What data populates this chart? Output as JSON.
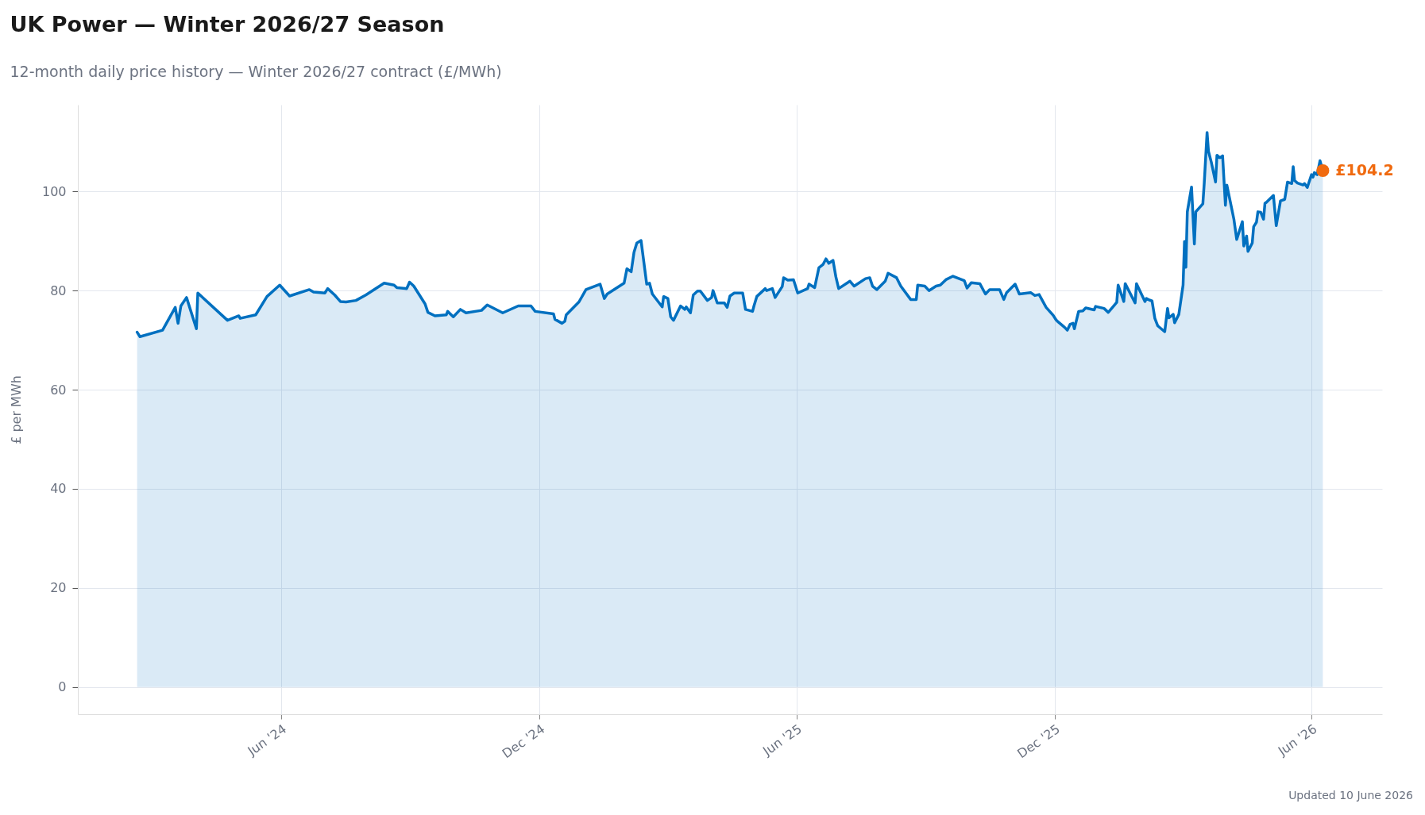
{
  "chart_data": {
    "type": "area",
    "title": "UK Power — Winter 2026/27 Season",
    "subtitle": "12-month daily price history — Winter 2026/27 contract (£/MWh)",
    "ylabel": "£ per MWh",
    "x": [
      "2024-02-20",
      "2024-02-22",
      "2024-03-09",
      "2024-03-18",
      "2024-03-20",
      "2024-03-22",
      "2024-03-26",
      "2024-04-02",
      "2024-04-03",
      "2024-04-24",
      "2024-05-02",
      "2024-05-03",
      "2024-05-14",
      "2024-05-22",
      "2024-05-31",
      "2024-06-07",
      "2024-06-21",
      "2024-06-24",
      "2024-07-02",
      "2024-07-04",
      "2024-07-09",
      "2024-07-13",
      "2024-07-17",
      "2024-07-24",
      "2024-07-31",
      "2024-08-13",
      "2024-08-20",
      "2024-08-22",
      "2024-08-29",
      "2024-08-31",
      "2024-09-03",
      "2024-09-11",
      "2024-09-13",
      "2024-09-18",
      "2024-09-26",
      "2024-09-27",
      "2024-10-01",
      "2024-10-06",
      "2024-10-10",
      "2024-10-21",
      "2024-10-25",
      "2024-11-05",
      "2024-11-16",
      "2024-11-25",
      "2024-11-28",
      "2024-12-11",
      "2024-12-12",
      "2024-12-17",
      "2024-12-19",
      "2024-12-20",
      "2024-12-29",
      "2025-01-03",
      "2025-01-13",
      "2025-01-16",
      "2025-01-18",
      "2025-01-30",
      "2025-02-01",
      "2025-02-04",
      "2025-02-06",
      "2025-02-08",
      "2025-02-11",
      "2025-02-15",
      "2025-02-17",
      "2025-02-19",
      "2025-02-26",
      "2025-02-27",
      "2025-03-02",
      "2025-03-04",
      "2025-03-06",
      "2025-03-11",
      "2025-03-14",
      "2025-03-15",
      "2025-03-18",
      "2025-03-20",
      "2025-03-23",
      "2025-03-25",
      "2025-03-30",
      "2025-04-02",
      "2025-04-03",
      "2025-04-06",
      "2025-04-11",
      "2025-04-13",
      "2025-04-15",
      "2025-04-18",
      "2025-04-24",
      "2025-04-26",
      "2025-05-01",
      "2025-05-02",
      "2025-05-04",
      "2025-05-10",
      "2025-05-11",
      "2025-05-15",
      "2025-05-17",
      "2025-05-22",
      "2025-05-23",
      "2025-05-26",
      "2025-05-30",
      "2025-06-02",
      "2025-06-09",
      "2025-06-10",
      "2025-06-14",
      "2025-06-17",
      "2025-06-20",
      "2025-06-22",
      "2025-06-24",
      "2025-06-27",
      "2025-06-29",
      "2025-07-01",
      "2025-07-09",
      "2025-07-12",
      "2025-07-20",
      "2025-07-23",
      "2025-07-25",
      "2025-07-28",
      "2025-08-03",
      "2025-08-05",
      "2025-08-11",
      "2025-08-14",
      "2025-08-21",
      "2025-08-25",
      "2025-08-26",
      "2025-08-31",
      "2025-09-03",
      "2025-09-08",
      "2025-09-11",
      "2025-09-15",
      "2025-09-20",
      "2025-09-28",
      "2025-09-30",
      "2025-10-03",
      "2025-10-09",
      "2025-10-13",
      "2025-10-16",
      "2025-10-23",
      "2025-10-26",
      "2025-10-28",
      "2025-11-03",
      "2025-11-06",
      "2025-11-14",
      "2025-11-17",
      "2025-11-20",
      "2025-11-25",
      "2025-11-30",
      "2025-12-02",
      "2025-12-03",
      "2025-12-08",
      "2025-12-10",
      "2025-12-12",
      "2025-12-14",
      "2025-12-15",
      "2025-12-18",
      "2025-12-21",
      "2025-12-23",
      "2025-12-29",
      "2025-12-30",
      "2026-01-05",
      "2026-01-08",
      "2026-01-13",
      "2026-01-14",
      "2026-01-15",
      "2026-01-19",
      "2026-01-20",
      "2026-01-27",
      "2026-01-28",
      "2026-02-03",
      "2026-02-04",
      "2026-02-06",
      "2026-02-08",
      "2026-02-10",
      "2026-02-12",
      "2026-02-17",
      "2026-02-19",
      "2026-02-20",
      "2026-02-23",
      "2026-02-24",
      "2026-02-27",
      "2026-03-02",
      "2026-03-03",
      "2026-03-04",
      "2026-03-05",
      "2026-03-08",
      "2026-03-10",
      "2026-03-11",
      "2026-03-16",
      "2026-03-17",
      "2026-03-19",
      "2026-03-20",
      "2026-03-22",
      "2026-03-25",
      "2026-03-26",
      "2026-03-28",
      "2026-03-30",
      "2026-04-01",
      "2026-04-02",
      "2026-04-07",
      "2026-04-09",
      "2026-04-13",
      "2026-04-14",
      "2026-04-16",
      "2026-04-17",
      "2026-04-20",
      "2026-04-21",
      "2026-04-23",
      "2026-04-24",
      "2026-04-26",
      "2026-04-28",
      "2026-04-29",
      "2026-04-30",
      "2026-05-05",
      "2026-05-07",
      "2026-05-10",
      "2026-05-13",
      "2026-05-15",
      "2026-05-18",
      "2026-05-19",
      "2026-05-20",
      "2026-05-22",
      "2026-05-26",
      "2026-05-27",
      "2026-05-29",
      "2026-06-01",
      "2026-06-02",
      "2026-06-03",
      "2026-06-05",
      "2026-06-07",
      "2026-06-09"
    ],
    "series": [
      {
        "color": "#0070c0",
        "values": [
          71.6,
          70.7,
          72.0,
          76.6,
          73.4,
          76.9,
          78.6,
          72.3,
          79.5,
          74.0,
          74.9,
          74.4,
          75.1,
          78.8,
          81.1,
          78.9,
          80.2,
          79.7,
          79.5,
          80.4,
          79.1,
          77.8,
          77.7,
          78.0,
          79.1,
          81.5,
          81.1,
          80.6,
          80.4,
          81.7,
          80.9,
          77.3,
          75.6,
          74.9,
          75.1,
          75.8,
          74.7,
          76.2,
          75.5,
          76.0,
          77.1,
          75.5,
          76.9,
          76.9,
          75.8,
          75.3,
          74.2,
          73.4,
          73.8,
          75.1,
          77.7,
          80.2,
          81.3,
          78.4,
          79.3,
          81.5,
          84.4,
          83.8,
          87.7,
          89.6,
          90.1,
          81.3,
          81.5,
          79.3,
          76.7,
          78.8,
          78.4,
          74.7,
          74.0,
          76.9,
          76.2,
          76.7,
          75.5,
          79.1,
          79.9,
          79.9,
          78.0,
          78.6,
          80.0,
          77.5,
          77.5,
          76.6,
          78.9,
          79.5,
          79.5,
          76.2,
          75.8,
          76.9,
          78.8,
          80.4,
          80.0,
          80.4,
          78.6,
          80.8,
          82.6,
          82.1,
          82.2,
          79.5,
          80.4,
          81.3,
          80.6,
          84.6,
          85.3,
          86.4,
          85.5,
          86.1,
          82.8,
          80.4,
          81.9,
          80.9,
          82.4,
          82.6,
          80.9,
          80.2,
          81.9,
          83.5,
          82.6,
          80.9,
          78.2,
          78.2,
          81.1,
          80.9,
          80.0,
          80.9,
          81.1,
          82.2,
          82.9,
          82.0,
          80.5,
          81.6,
          81.4,
          79.3,
          80.2,
          80.2,
          78.2,
          79.6,
          81.3,
          79.3,
          79.6,
          79.0,
          79.2,
          76.6,
          75.0,
          74.1,
          73.8,
          72.6,
          72.0,
          73.2,
          73.4,
          72.3,
          75.8,
          75.9,
          76.5,
          76.1,
          76.8,
          76.4,
          75.6,
          77.3,
          77.6,
          81.1,
          77.8,
          81.4,
          77.5,
          81.4,
          77.8,
          78.4,
          78.1,
          77.9,
          74.4,
          72.9,
          71.7,
          76.4,
          74.5,
          75.2,
          73.5,
          75.2,
          81.1,
          89.9,
          84.7,
          95.9,
          100.9,
          89.4,
          95.9,
          97.5,
          101.7,
          111.9,
          108.1,
          105.9,
          101.9,
          107.3,
          106.8,
          107.2,
          97.2,
          101.3,
          94.4,
          90.3,
          93.9,
          89.0,
          91.0,
          87.9,
          89.6,
          92.9,
          93.8,
          95.9,
          95.8,
          94.4,
          97.6,
          97.8,
          99.2,
          93.1,
          98.1,
          98.4,
          101.9,
          101.6,
          105.0,
          102.2,
          101.7,
          101.3,
          101.6,
          100.8,
          103.4,
          102.9,
          103.8,
          103.4,
          106.2,
          104.2
        ]
      }
    ],
    "xlim": [
      "2024-01-09",
      "2026-07-21"
    ],
    "xticks": [
      {
        "value": "2024-06-01",
        "label": "Jun '24"
      },
      {
        "value": "2024-12-01",
        "label": "Dec '24"
      },
      {
        "value": "2025-06-01",
        "label": "Jun '25"
      },
      {
        "value": "2025-12-01",
        "label": "Dec '25"
      },
      {
        "value": "2026-06-01",
        "label": "Jun '26"
      }
    ],
    "ylim": [
      -5.5,
      117.5
    ],
    "yticks": [
      0,
      20,
      40,
      60,
      80,
      100
    ],
    "grid": true,
    "annotations": [
      {
        "text": "£104.2",
        "x": "2026-06-09",
        "y": 104.2
      },
      "Updated 10 June 2026"
    ]
  }
}
